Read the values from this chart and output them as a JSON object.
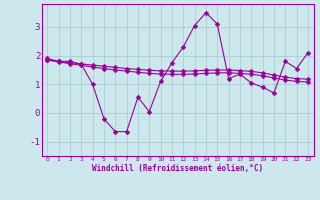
{
  "xlabel": "Windchill (Refroidissement éolien,°C)",
  "x": [
    0,
    1,
    2,
    3,
    4,
    5,
    6,
    7,
    8,
    9,
    10,
    11,
    12,
    13,
    14,
    15,
    16,
    17,
    18,
    19,
    20,
    21,
    22,
    23
  ],
  "line1": [
    1.9,
    1.8,
    1.8,
    1.7,
    1.0,
    -0.2,
    -0.65,
    -0.65,
    0.55,
    0.05,
    1.1,
    1.75,
    2.3,
    3.05,
    3.5,
    3.1,
    1.2,
    1.35,
    1.05,
    0.9,
    0.7,
    1.8,
    1.55,
    2.1
  ],
  "line2": [
    1.85,
    1.78,
    1.72,
    1.66,
    1.6,
    1.55,
    1.5,
    1.46,
    1.42,
    1.38,
    1.36,
    1.35,
    1.35,
    1.36,
    1.38,
    1.4,
    1.4,
    1.38,
    1.35,
    1.3,
    1.22,
    1.15,
    1.1,
    1.08
  ],
  "line3": [
    1.85,
    1.8,
    1.76,
    1.71,
    1.67,
    1.63,
    1.59,
    1.55,
    1.52,
    1.49,
    1.47,
    1.46,
    1.46,
    1.47,
    1.49,
    1.5,
    1.5,
    1.48,
    1.45,
    1.4,
    1.32,
    1.25,
    1.2,
    1.18
  ],
  "line_color": "#990099",
  "bg_color": "#cce8ec",
  "grid_color": "#aacdd4",
  "ylim": [
    -1.5,
    3.8
  ],
  "yticks": [
    -1,
    0,
    1,
    2,
    3
  ],
  "markersize": 2.5
}
